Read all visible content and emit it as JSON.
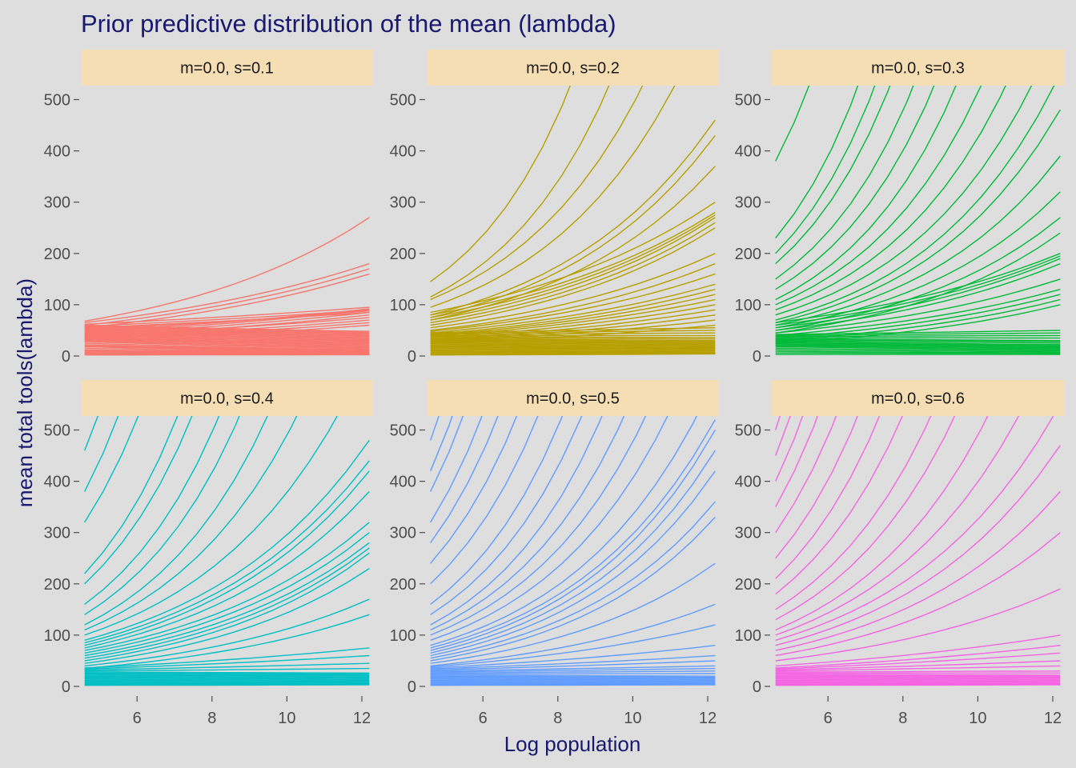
{
  "chart_data": {
    "type": "line",
    "title": "Prior predictive distribution of the mean (lambda)",
    "xlabel": "Log population",
    "ylabel": "mean total tools(lambda)",
    "xlim": [
      4.5,
      12.3
    ],
    "ylim": [
      0,
      525
    ],
    "xticks": [
      6,
      8,
      10,
      12
    ],
    "yticks": [
      0,
      100,
      200,
      300,
      400,
      500
    ],
    "grid": false,
    "legend": "none",
    "x": [
      4.6,
      5.1,
      5.6,
      6.1,
      6.6,
      7.1,
      7.6,
      8.1,
      8.6,
      9.1,
      9.6,
      10.1,
      10.6,
      11.1,
      11.6,
      12.2
    ],
    "colors": {
      "panel_bg": "#dedede",
      "strip_bg": "#f5deb3",
      "title": "#191970"
    },
    "panels": [
      {
        "label": "m=0.0, s=0.1",
        "color": "#F8766D",
        "series": [
          {
            "a": 0,
            "b": 1.5
          },
          {
            "a": 2,
            "b": 2.5
          },
          {
            "a": 4,
            "b": 3
          },
          {
            "a": 6,
            "b": 4
          },
          {
            "a": 8,
            "b": 5
          },
          {
            "a": 10,
            "b": 6
          },
          {
            "a": 12,
            "b": 7
          },
          {
            "a": 15,
            "b": 8
          },
          {
            "a": 18,
            "b": 9
          },
          {
            "a": 20,
            "b": 10
          },
          {
            "a": 22,
            "b": 11
          },
          {
            "a": 25,
            "b": 12
          },
          {
            "a": 28,
            "b": 14
          },
          {
            "a": 30,
            "b": 16
          },
          {
            "a": 32,
            "b": 18
          },
          {
            "a": 34,
            "b": 20
          },
          {
            "a": 35,
            "b": 22
          },
          {
            "a": 36,
            "b": 24
          },
          {
            "a": 38,
            "b": 26
          },
          {
            "a": 40,
            "b": 28
          },
          {
            "a": 42,
            "b": 30
          },
          {
            "a": 44,
            "b": 32
          },
          {
            "a": 46,
            "b": 34
          },
          {
            "a": 48,
            "b": 36
          },
          {
            "a": 50,
            "b": 38
          },
          {
            "a": 52,
            "b": 40
          },
          {
            "a": 54,
            "b": 42
          },
          {
            "a": 56,
            "b": 44
          },
          {
            "a": 58,
            "b": 46
          },
          {
            "a": 60,
            "b": 48
          },
          {
            "a": 30,
            "b": 60
          },
          {
            "a": 33,
            "b": 65
          },
          {
            "a": 36,
            "b": 70
          },
          {
            "a": 40,
            "b": 75
          },
          {
            "a": 38,
            "b": 80
          },
          {
            "a": 42,
            "b": 85
          },
          {
            "a": 45,
            "b": 90
          },
          {
            "a": 48,
            "b": 92
          },
          {
            "a": 52,
            "b": 88
          },
          {
            "a": 55,
            "b": 85
          },
          {
            "a": 58,
            "b": 90
          },
          {
            "a": 62,
            "b": 95
          },
          {
            "a": 55,
            "b": 160
          },
          {
            "a": 60,
            "b": 170
          },
          {
            "a": 65,
            "b": 180
          },
          {
            "a": 68,
            "b": 270
          }
        ]
      },
      {
        "label": "m=0.0, s=0.2",
        "color": "#B79F00",
        "series": [
          {
            "a": 0,
            "b": 2
          },
          {
            "a": 2,
            "b": 4
          },
          {
            "a": 4,
            "b": 5
          },
          {
            "a": 6,
            "b": 6
          },
          {
            "a": 8,
            "b": 7
          },
          {
            "a": 10,
            "b": 8
          },
          {
            "a": 12,
            "b": 10
          },
          {
            "a": 14,
            "b": 12
          },
          {
            "a": 16,
            "b": 14
          },
          {
            "a": 18,
            "b": 15
          },
          {
            "a": 20,
            "b": 16
          },
          {
            "a": 22,
            "b": 18
          },
          {
            "a": 24,
            "b": 20
          },
          {
            "a": 26,
            "b": 22
          },
          {
            "a": 28,
            "b": 24
          },
          {
            "a": 30,
            "b": 26
          },
          {
            "a": 32,
            "b": 28
          },
          {
            "a": 34,
            "b": 30
          },
          {
            "a": 36,
            "b": 33
          },
          {
            "a": 38,
            "b": 36
          },
          {
            "a": 40,
            "b": 40
          },
          {
            "a": 42,
            "b": 45
          },
          {
            "a": 44,
            "b": 50
          },
          {
            "a": 46,
            "b": 55
          },
          {
            "a": 25,
            "b": 60
          },
          {
            "a": 28,
            "b": 70
          },
          {
            "a": 30,
            "b": 80
          },
          {
            "a": 32,
            "b": 90
          },
          {
            "a": 35,
            "b": 100
          },
          {
            "a": 38,
            "b": 110
          },
          {
            "a": 40,
            "b": 120
          },
          {
            "a": 42,
            "b": 130
          },
          {
            "a": 45,
            "b": 140
          },
          {
            "a": 48,
            "b": 160
          },
          {
            "a": 50,
            "b": 180
          },
          {
            "a": 55,
            "b": 200
          },
          {
            "a": 60,
            "b": 250
          },
          {
            "a": 65,
            "b": 260
          },
          {
            "a": 70,
            "b": 270
          },
          {
            "a": 75,
            "b": 275
          },
          {
            "a": 80,
            "b": 280
          },
          {
            "a": 85,
            "b": 300
          },
          {
            "a": 70,
            "b": 370
          },
          {
            "a": 75,
            "b": 430
          },
          {
            "a": 80,
            "b": 460
          },
          {
            "a": 95,
            "b": 700
          },
          {
            "a": 110,
            "b": 900
          },
          {
            "a": 115,
            "b": 1300
          },
          {
            "a": 145,
            "b": 2000
          }
        ]
      },
      {
        "label": "m=0.0, s=0.3",
        "color": "#00BA38",
        "series": [
          {
            "a": 0,
            "b": 2
          },
          {
            "a": 3,
            "b": 3
          },
          {
            "a": 6,
            "b": 5
          },
          {
            "a": 9,
            "b": 6
          },
          {
            "a": 12,
            "b": 8
          },
          {
            "a": 15,
            "b": 10
          },
          {
            "a": 18,
            "b": 12
          },
          {
            "a": 20,
            "b": 14
          },
          {
            "a": 22,
            "b": 16
          },
          {
            "a": 24,
            "b": 18
          },
          {
            "a": 26,
            "b": 20
          },
          {
            "a": 28,
            "b": 22
          },
          {
            "a": 30,
            "b": 25
          },
          {
            "a": 32,
            "b": 28
          },
          {
            "a": 34,
            "b": 30
          },
          {
            "a": 36,
            "b": 35
          },
          {
            "a": 38,
            "b": 40
          },
          {
            "a": 40,
            "b": 45
          },
          {
            "a": 42,
            "b": 50
          },
          {
            "a": 25,
            "b": 100
          },
          {
            "a": 30,
            "b": 110
          },
          {
            "a": 35,
            "b": 120
          },
          {
            "a": 40,
            "b": 130
          },
          {
            "a": 45,
            "b": 150
          },
          {
            "a": 50,
            "b": 180
          },
          {
            "a": 55,
            "b": 190
          },
          {
            "a": 60,
            "b": 195
          },
          {
            "a": 65,
            "b": 200
          },
          {
            "a": 45,
            "b": 240
          },
          {
            "a": 50,
            "b": 270
          },
          {
            "a": 55,
            "b": 320
          },
          {
            "a": 60,
            "b": 390
          },
          {
            "a": 65,
            "b": 480
          },
          {
            "a": 70,
            "b": 550
          },
          {
            "a": 80,
            "b": 650
          },
          {
            "a": 90,
            "b": 800
          },
          {
            "a": 100,
            "b": 1000
          },
          {
            "a": 110,
            "b": 1300
          },
          {
            "a": 130,
            "b": 1600
          },
          {
            "a": 150,
            "b": 2000
          },
          {
            "a": 180,
            "b": 2600
          },
          {
            "a": 200,
            "b": 3200
          },
          {
            "a": 230,
            "b": 4000
          },
          {
            "a": 380,
            "b": 6000
          }
        ]
      },
      {
        "label": "m=0.0, s=0.4",
        "color": "#00BFC4",
        "series": [
          {
            "a": 0,
            "b": 2
          },
          {
            "a": 2,
            "b": 3
          },
          {
            "a": 4,
            "b": 4
          },
          {
            "a": 6,
            "b": 5
          },
          {
            "a": 8,
            "b": 6
          },
          {
            "a": 10,
            "b": 8
          },
          {
            "a": 12,
            "b": 10
          },
          {
            "a": 14,
            "b": 12
          },
          {
            "a": 16,
            "b": 14
          },
          {
            "a": 18,
            "b": 16
          },
          {
            "a": 20,
            "b": 18
          },
          {
            "a": 22,
            "b": 20
          },
          {
            "a": 24,
            "b": 22
          },
          {
            "a": 26,
            "b": 24
          },
          {
            "a": 28,
            "b": 26
          },
          {
            "a": 30,
            "b": 35
          },
          {
            "a": 32,
            "b": 45
          },
          {
            "a": 34,
            "b": 60
          },
          {
            "a": 36,
            "b": 75
          },
          {
            "a": 35,
            "b": 140
          },
          {
            "a": 40,
            "b": 170
          },
          {
            "a": 45,
            "b": 230
          },
          {
            "a": 50,
            "b": 260
          },
          {
            "a": 55,
            "b": 270
          },
          {
            "a": 60,
            "b": 280
          },
          {
            "a": 65,
            "b": 300
          },
          {
            "a": 70,
            "b": 320
          },
          {
            "a": 75,
            "b": 380
          },
          {
            "a": 80,
            "b": 420
          },
          {
            "a": 85,
            "b": 440
          },
          {
            "a": 90,
            "b": 480
          },
          {
            "a": 100,
            "b": 650
          },
          {
            "a": 110,
            "b": 900
          },
          {
            "a": 120,
            "b": 1200
          },
          {
            "a": 140,
            "b": 1600
          },
          {
            "a": 160,
            "b": 2000
          },
          {
            "a": 200,
            "b": 2600
          },
          {
            "a": 220,
            "b": 3200
          },
          {
            "a": 320,
            "b": 4500
          },
          {
            "a": 380,
            "b": 6000
          },
          {
            "a": 460,
            "b": 8000
          }
        ]
      },
      {
        "label": "m=0.0, s=0.5",
        "color": "#619CFF",
        "series": [
          {
            "a": 0,
            "b": 2
          },
          {
            "a": 2,
            "b": 3
          },
          {
            "a": 4,
            "b": 4
          },
          {
            "a": 6,
            "b": 5
          },
          {
            "a": 8,
            "b": 6
          },
          {
            "a": 10,
            "b": 8
          },
          {
            "a": 12,
            "b": 10
          },
          {
            "a": 14,
            "b": 12
          },
          {
            "a": 16,
            "b": 14
          },
          {
            "a": 18,
            "b": 16
          },
          {
            "a": 20,
            "b": 18
          },
          {
            "a": 22,
            "b": 20
          },
          {
            "a": 24,
            "b": 25
          },
          {
            "a": 26,
            "b": 30
          },
          {
            "a": 28,
            "b": 35
          },
          {
            "a": 30,
            "b": 40
          },
          {
            "a": 32,
            "b": 50
          },
          {
            "a": 34,
            "b": 60
          },
          {
            "a": 36,
            "b": 80
          },
          {
            "a": 38,
            "b": 120
          },
          {
            "a": 40,
            "b": 160
          },
          {
            "a": 45,
            "b": 240
          },
          {
            "a": 50,
            "b": 330
          },
          {
            "a": 55,
            "b": 360
          },
          {
            "a": 60,
            "b": 420
          },
          {
            "a": 65,
            "b": 460
          },
          {
            "a": 70,
            "b": 500
          },
          {
            "a": 75,
            "b": 520
          },
          {
            "a": 80,
            "b": 600
          },
          {
            "a": 90,
            "b": 750
          },
          {
            "a": 100,
            "b": 900
          },
          {
            "a": 110,
            "b": 1100
          },
          {
            "a": 120,
            "b": 1400
          },
          {
            "a": 140,
            "b": 1700
          },
          {
            "a": 160,
            "b": 2100
          },
          {
            "a": 200,
            "b": 2600
          },
          {
            "a": 240,
            "b": 3200
          },
          {
            "a": 280,
            "b": 4000
          },
          {
            "a": 320,
            "b": 5000
          },
          {
            "a": 380,
            "b": 6500
          },
          {
            "a": 420,
            "b": 8000
          },
          {
            "a": 480,
            "b": 10000
          }
        ]
      },
      {
        "label": "m=0.0, s=0.6",
        "color": "#F564E3",
        "series": [
          {
            "a": 0,
            "b": 2
          },
          {
            "a": 2,
            "b": 3
          },
          {
            "a": 4,
            "b": 4
          },
          {
            "a": 6,
            "b": 5
          },
          {
            "a": 8,
            "b": 6
          },
          {
            "a": 10,
            "b": 8
          },
          {
            "a": 12,
            "b": 10
          },
          {
            "a": 14,
            "b": 12
          },
          {
            "a": 16,
            "b": 14
          },
          {
            "a": 18,
            "b": 16
          },
          {
            "a": 20,
            "b": 18
          },
          {
            "a": 22,
            "b": 20
          },
          {
            "a": 24,
            "b": 22
          },
          {
            "a": 26,
            "b": 26
          },
          {
            "a": 28,
            "b": 30
          },
          {
            "a": 30,
            "b": 40
          },
          {
            "a": 32,
            "b": 50
          },
          {
            "a": 34,
            "b": 65
          },
          {
            "a": 36,
            "b": 80
          },
          {
            "a": 40,
            "b": 100
          },
          {
            "a": 50,
            "b": 190
          },
          {
            "a": 60,
            "b": 300
          },
          {
            "a": 70,
            "b": 380
          },
          {
            "a": 80,
            "b": 470
          },
          {
            "a": 90,
            "b": 550
          },
          {
            "a": 100,
            "b": 700
          },
          {
            "a": 110,
            "b": 900
          },
          {
            "a": 130,
            "b": 1200
          },
          {
            "a": 150,
            "b": 1500
          },
          {
            "a": 180,
            "b": 2000
          },
          {
            "a": 210,
            "b": 2600
          },
          {
            "a": 250,
            "b": 3300
          },
          {
            "a": 300,
            "b": 4200
          },
          {
            "a": 350,
            "b": 5500
          },
          {
            "a": 400,
            "b": 7000
          },
          {
            "a": 450,
            "b": 9000
          },
          {
            "a": 500,
            "b": 12000
          }
        ]
      }
    ]
  }
}
